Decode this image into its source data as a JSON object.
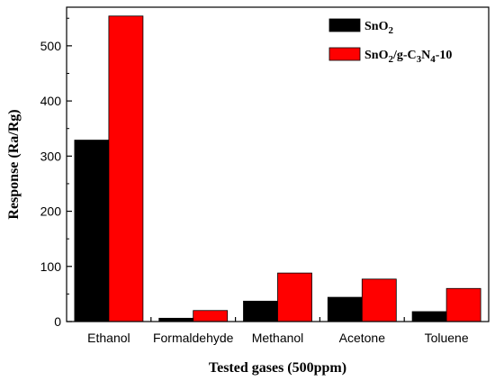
{
  "chart_data": {
    "type": "bar",
    "categories": [
      "Ethanol",
      "Formaldehyde",
      "Methanol",
      "Acetone",
      "Toluene"
    ],
    "series": [
      {
        "name": "SnO2",
        "color": "#000000",
        "values": [
          329,
          6,
          37,
          44,
          18
        ]
      },
      {
        "name": "SnO2/g-C3N4-10",
        "color": "#ff0000",
        "values": [
          554,
          20,
          88,
          77,
          60
        ]
      }
    ],
    "title": "",
    "xlabel": "Tested gases (500ppm)",
    "ylabel": "Response (Ra/Rg)",
    "ylim": [
      0,
      570
    ],
    "yticks": [
      0,
      100,
      200,
      300,
      400,
      500
    ],
    "grid": false,
    "legend_position": "top-right"
  }
}
